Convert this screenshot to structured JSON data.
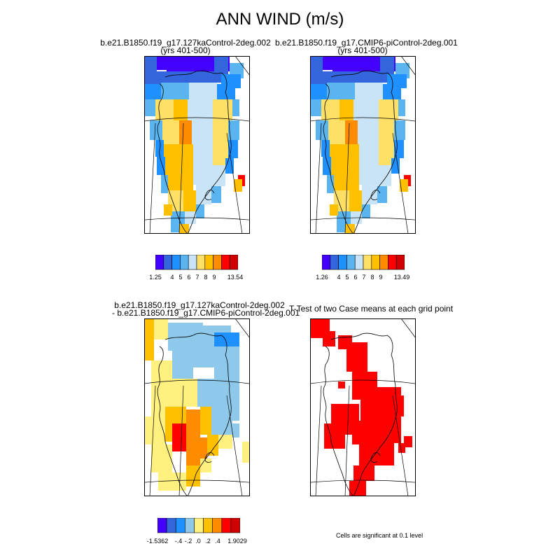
{
  "title": "ANN WIND (m/s)",
  "panels": [
    {
      "title_line1": "b.e21.B1850.f19_g17.127kaControl-2deg.002",
      "title_line2": "(yrs 401-500)",
      "colorbar_labels": [
        "1.25",
        "4",
        "5",
        "6",
        "7",
        "8",
        "9",
        "13.54"
      ]
    },
    {
      "title_line1": "b.e21.B1850.f19_g17.CMIP6-piControl-2deg.001",
      "title_line2": "(yrs 401-500)",
      "colorbar_labels": [
        "1.26",
        "4",
        "5",
        "6",
        "7",
        "8",
        "9",
        "13.49"
      ]
    },
    {
      "title_line1": "b.e21.B1850.f19_g17.127kaControl-2deg.002",
      "title_line2": "- b.e21.B1850.f19_g17.CMIP6-piControl-2deg.001",
      "colorbar_labels": [
        "-1.5362",
        "-.4",
        "-.2",
        ".0",
        ".2",
        ".4",
        "1.9029"
      ]
    },
    {
      "title_line1": "T-Test of two Case means at each grid point",
      "note": "Cells are significant at 0.1 level"
    }
  ],
  "colors": {
    "wind_scale": [
      "#4400ff",
      "#3366dd",
      "#1e90ff",
      "#5ab4f0",
      "#c8e4f6",
      "#ffe066",
      "#ffc000",
      "#ff8c00",
      "#ff0000",
      "#d00000"
    ],
    "diff_scale": [
      "#4400ff",
      "#3366dd",
      "#1e90ff",
      "#8ec8ea",
      "#fff080",
      "#ffc000",
      "#ff8c00",
      "#ff0000",
      "#d00000"
    ],
    "significant": "#ff0000"
  }
}
